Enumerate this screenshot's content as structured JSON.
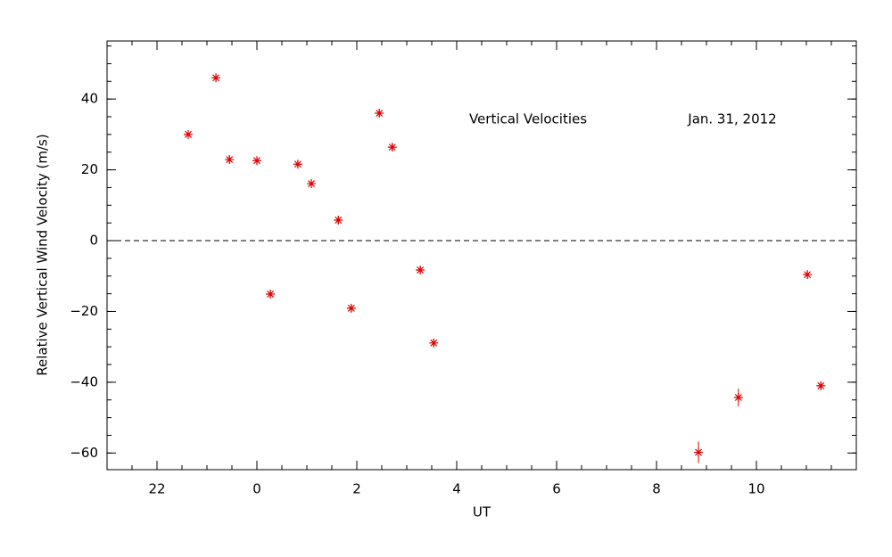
{
  "chart_data": {
    "type": "scatter",
    "x_label": "UT",
    "y_label": "Relative Vertical Wind Velocity (m/s)",
    "annotations": [
      "Vertical Velocities",
      "Jan. 31, 2012"
    ],
    "x": [
      -1.375,
      -0.82,
      -0.55,
      0,
      0.27,
      0.82,
      1.09,
      1.63,
      1.89,
      2.45,
      2.71,
      3.27,
      3.54,
      8.84,
      9.64,
      11.02,
      11.29
    ],
    "series": [
      {
        "color": "#dd0000",
        "values": [
          30,
          46,
          22.9,
          22.6,
          -15.1,
          21.6,
          16.1,
          5.8,
          -19.1,
          36,
          26.4,
          -8.3,
          -28.9,
          -59.8,
          -44.3,
          -9.6,
          -41
        ],
        "errors": [
          1,
          1,
          1,
          1,
          1,
          1,
          1,
          1,
          1,
          1,
          1,
          1,
          1,
          3,
          2.5,
          1,
          1
        ]
      }
    ],
    "xlim": [
      -3,
      12
    ],
    "ylim": [
      -64.7,
      56.4
    ],
    "xticks": [
      {
        "value": -2,
        "label": "22"
      },
      0,
      2,
      4,
      6,
      8,
      10
    ],
    "yticks": [
      {
        "value": -60,
        "label": "−60"
      },
      {
        "value": -40,
        "label": "−40"
      },
      {
        "value": -20,
        "label": "−20"
      },
      0,
      20,
      40
    ],
    "reference_line": 0
  }
}
